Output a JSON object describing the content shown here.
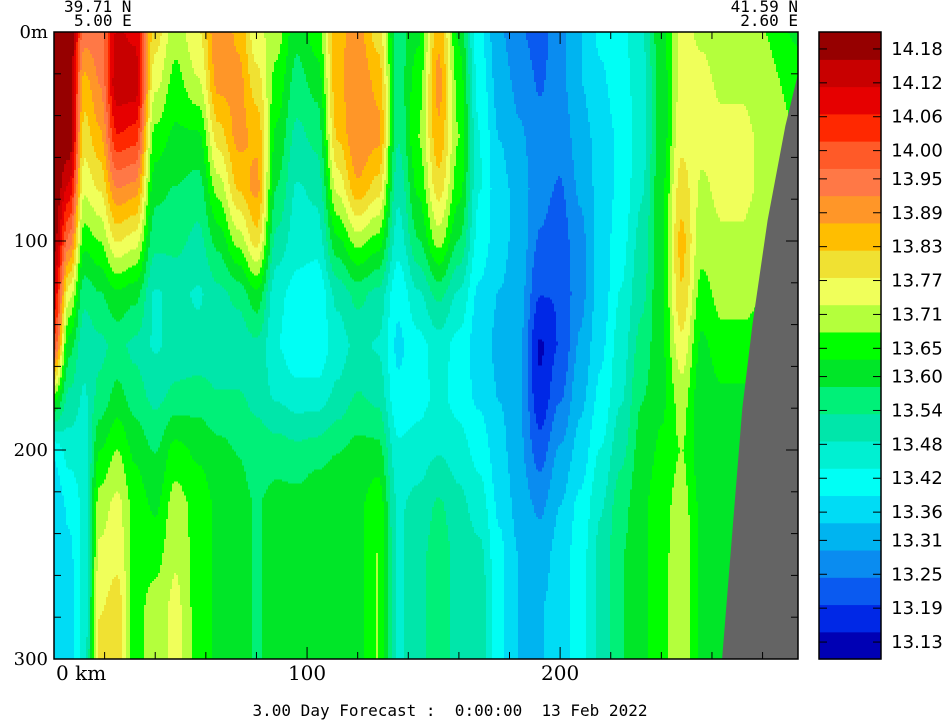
{
  "chart_data": {
    "type": "heatmap",
    "title": "3.00 Day Forecast :  0:00:00  13 Feb 2022",
    "corner_left": {
      "lat": "39.71 N",
      "lon": "5.00 E"
    },
    "corner_right": {
      "lat": "41.59 N",
      "lon": "2.60 E"
    },
    "xlabel": "km",
    "ylabel": "m",
    "xlim": [
      0,
      294
    ],
    "ylim": [
      300,
      0
    ],
    "x_ticks": [
      {
        "value": 0,
        "label": "0 km"
      },
      {
        "value": 100,
        "label": "100"
      },
      {
        "value": 200,
        "label": "200"
      }
    ],
    "y_ticks": [
      {
        "value": 0,
        "label": "0m"
      },
      {
        "value": 100,
        "label": "100"
      },
      {
        "value": 200,
        "label": "200"
      },
      {
        "value": 300,
        "label": "300"
      }
    ],
    "colorbar": {
      "levels": [
        13.1,
        13.13,
        13.16,
        13.19,
        13.22,
        13.25,
        13.28,
        13.31,
        13.34,
        13.36,
        13.39,
        13.42,
        13.45,
        13.48,
        13.51,
        13.54,
        13.57,
        13.6,
        13.62,
        13.65,
        13.68,
        13.71,
        13.74,
        13.77,
        13.8,
        13.83,
        13.86,
        13.89,
        13.92,
        13.95,
        13.98,
        14.0,
        14.03,
        14.06,
        14.09,
        14.12,
        14.15,
        14.18,
        14.21
      ],
      "labels": [
        "14.18",
        "14.12",
        "14.06",
        "14.00",
        "13.95",
        "13.89",
        "13.83",
        "13.77",
        "13.71",
        "13.65",
        "13.60",
        "13.54",
        "13.48",
        "13.42",
        "13.36",
        "13.31",
        "13.25",
        "13.19",
        "13.13"
      ],
      "colors": [
        "#0000b4",
        "#0028e6",
        "#0a5af0",
        "#0a8cf0",
        "#00b4f0",
        "#00dcf5",
        "#00fff5",
        "#00f0d2",
        "#00e6aa",
        "#00f078",
        "#00e628",
        "#00ff00",
        "#b4ff3c",
        "#f0ff5a",
        "#f0e132",
        "#ffbe00",
        "#ff9628",
        "#ff7846",
        "#ff5a28",
        "#ff2800",
        "#e60000",
        "#c80000",
        "#960000"
      ]
    },
    "land_color": "#646464",
    "field": {
      "depths_m": [
        0,
        25,
        50,
        75,
        100,
        125,
        150,
        175,
        200,
        225,
        250,
        275,
        300
      ],
      "columns": [
        {
          "x_km": 0,
          "t": [
            14.21,
            14.21,
            14.21,
            14.21,
            14.18,
            14.1,
            14.0,
            13.65,
            13.4,
            13.35,
            13.38,
            13.36,
            13.36
          ]
        },
        {
          "x_km": 6,
          "t": [
            14.21,
            14.21,
            14.21,
            14.1,
            13.95,
            13.75,
            13.6,
            13.52,
            13.46,
            13.4,
            13.38,
            13.36,
            13.36
          ]
        },
        {
          "x_km": 12,
          "t": [
            13.95,
            13.85,
            13.8,
            13.74,
            13.65,
            13.55,
            13.5,
            13.48,
            13.46,
            13.45,
            13.45,
            13.46,
            13.46
          ]
        },
        {
          "x_km": 18,
          "t": [
            13.95,
            13.92,
            13.86,
            13.78,
            13.68,
            13.58,
            13.52,
            13.55,
            13.63,
            13.7,
            13.74,
            13.77,
            13.8
          ]
        },
        {
          "x_km": 25,
          "t": [
            14.12,
            14.15,
            14.06,
            13.92,
            13.78,
            13.62,
            13.55,
            13.6,
            13.68,
            13.74,
            13.76,
            13.8,
            13.8
          ]
        },
        {
          "x_km": 32,
          "t": [
            14.1,
            14.15,
            14.04,
            13.9,
            13.75,
            13.6,
            13.52,
            13.56,
            13.62,
            13.66,
            13.66,
            13.66,
            13.66
          ]
        },
        {
          "x_km": 40,
          "t": [
            13.8,
            13.74,
            13.66,
            13.6,
            13.55,
            13.48,
            13.48,
            13.52,
            13.58,
            13.62,
            13.66,
            13.7,
            13.7
          ]
        },
        {
          "x_km": 48,
          "t": [
            13.7,
            13.66,
            13.62,
            13.58,
            13.55,
            13.5,
            13.5,
            13.55,
            13.65,
            13.7,
            13.72,
            13.74,
            13.74
          ]
        },
        {
          "x_km": 57,
          "t": [
            13.77,
            13.72,
            13.62,
            13.56,
            13.52,
            13.48,
            13.5,
            13.56,
            13.62,
            13.66,
            13.66,
            13.66,
            13.66
          ]
        },
        {
          "x_km": 65,
          "t": [
            13.92,
            13.89,
            13.8,
            13.7,
            13.6,
            13.52,
            13.5,
            13.54,
            13.6,
            13.62,
            13.62,
            13.62,
            13.62
          ]
        },
        {
          "x_km": 73,
          "t": [
            13.86,
            13.89,
            13.89,
            13.83,
            13.7,
            13.55,
            13.5,
            13.54,
            13.58,
            13.6,
            13.6,
            13.6,
            13.6
          ]
        },
        {
          "x_km": 80,
          "t": [
            13.74,
            13.8,
            13.86,
            13.89,
            13.8,
            13.62,
            13.52,
            13.52,
            13.56,
            13.58,
            13.58,
            13.58,
            13.58
          ]
        },
        {
          "x_km": 88,
          "t": [
            13.7,
            13.66,
            13.62,
            13.58,
            13.52,
            13.45,
            13.44,
            13.48,
            13.56,
            13.6,
            13.6,
            13.6,
            13.6
          ]
        },
        {
          "x_km": 96,
          "t": [
            13.6,
            13.56,
            13.52,
            13.48,
            13.46,
            13.42,
            13.4,
            13.46,
            13.55,
            13.6,
            13.6,
            13.6,
            13.6
          ]
        },
        {
          "x_km": 104,
          "t": [
            13.66,
            13.6,
            13.55,
            13.5,
            13.46,
            13.4,
            13.4,
            13.46,
            13.56,
            13.62,
            13.62,
            13.62,
            13.62
          ]
        },
        {
          "x_km": 112,
          "t": [
            13.86,
            13.86,
            13.83,
            13.74,
            13.62,
            13.5,
            13.46,
            13.5,
            13.58,
            13.62,
            13.62,
            13.62,
            13.62
          ]
        },
        {
          "x_km": 120,
          "t": [
            13.89,
            13.92,
            13.92,
            13.86,
            13.7,
            13.55,
            13.5,
            13.54,
            13.6,
            13.62,
            13.62,
            13.62,
            13.62
          ]
        },
        {
          "x_km": 128,
          "t": [
            13.8,
            13.86,
            13.89,
            13.8,
            13.66,
            13.52,
            13.48,
            13.52,
            13.6,
            13.66,
            13.68,
            13.68,
            13.68
          ]
        },
        {
          "x_km": 136,
          "t": [
            13.56,
            13.56,
            13.54,
            13.5,
            13.46,
            13.4,
            13.38,
            13.4,
            13.45,
            13.48,
            13.48,
            13.48,
            13.48
          ]
        },
        {
          "x_km": 144,
          "t": [
            13.62,
            13.66,
            13.68,
            13.64,
            13.58,
            13.48,
            13.42,
            13.42,
            13.46,
            13.5,
            13.52,
            13.52,
            13.52
          ]
        },
        {
          "x_km": 152,
          "t": [
            13.86,
            13.89,
            13.86,
            13.8,
            13.7,
            13.55,
            13.46,
            13.45,
            13.48,
            13.54,
            13.56,
            13.56,
            13.56
          ]
        },
        {
          "x_km": 160,
          "t": [
            13.62,
            13.66,
            13.68,
            13.65,
            13.58,
            13.48,
            13.42,
            13.42,
            13.46,
            13.5,
            13.52,
            13.52,
            13.52
          ]
        },
        {
          "x_km": 168,
          "t": [
            13.4,
            13.42,
            13.44,
            13.44,
            13.42,
            13.38,
            13.36,
            13.38,
            13.42,
            13.46,
            13.5,
            13.52,
            13.52
          ]
        },
        {
          "x_km": 176,
          "t": [
            13.3,
            13.32,
            13.34,
            13.36,
            13.36,
            13.34,
            13.33,
            13.34,
            13.36,
            13.38,
            13.4,
            13.4,
            13.4
          ]
        },
        {
          "x_km": 184,
          "t": [
            13.25,
            13.28,
            13.3,
            13.32,
            13.32,
            13.31,
            13.3,
            13.3,
            13.3,
            13.32,
            13.34,
            13.34,
            13.34
          ]
        },
        {
          "x_km": 192,
          "t": [
            13.22,
            13.24,
            13.26,
            13.26,
            13.24,
            13.2,
            13.14,
            13.16,
            13.22,
            13.28,
            13.32,
            13.34,
            13.34
          ]
        },
        {
          "x_km": 200,
          "t": [
            13.28,
            13.28,
            13.26,
            13.24,
            13.22,
            13.2,
            13.2,
            13.24,
            13.3,
            13.34,
            13.36,
            13.36,
            13.36
          ]
        },
        {
          "x_km": 208,
          "t": [
            13.34,
            13.34,
            13.32,
            13.3,
            13.28,
            13.28,
            13.3,
            13.33,
            13.36,
            13.4,
            13.42,
            13.42,
            13.42
          ]
        },
        {
          "x_km": 216,
          "t": [
            13.4,
            13.38,
            13.36,
            13.36,
            13.36,
            13.36,
            13.38,
            13.4,
            13.44,
            13.48,
            13.5,
            13.5,
            13.5
          ]
        },
        {
          "x_km": 224,
          "t": [
            13.42,
            13.42,
            13.4,
            13.4,
            13.42,
            13.44,
            13.46,
            13.48,
            13.52,
            13.56,
            13.58,
            13.58,
            13.58
          ]
        },
        {
          "x_km": 232,
          "t": [
            13.48,
            13.46,
            13.46,
            13.48,
            13.5,
            13.52,
            13.55,
            13.58,
            13.6,
            13.62,
            13.62,
            13.62,
            13.62
          ]
        },
        {
          "x_km": 240,
          "t": [
            13.62,
            13.6,
            13.6,
            13.62,
            13.62,
            13.62,
            13.62,
            13.62,
            13.64,
            13.66,
            13.66,
            13.66,
            13.66
          ]
        },
        {
          "x_km": 248,
          "t": [
            13.74,
            13.74,
            13.76,
            13.8,
            13.84,
            13.82,
            13.76,
            13.7,
            13.68,
            13.7,
            13.72,
            13.72,
            13.72
          ]
        },
        {
          "x_km": 256,
          "t": [
            13.72,
            13.74,
            13.74,
            13.72,
            13.7,
            13.66,
            13.62,
            13.6,
            13.6,
            13.62,
            13.62,
            13.62,
            13.62
          ]
        },
        {
          "x_km": 264,
          "t": [
            13.7,
            13.72,
            13.74,
            13.74,
            13.72,
            13.7,
            13.66,
            13.62,
            13.6,
            13.6,
            13.6,
            13.6,
            13.6
          ]
        },
        {
          "x_km": 272,
          "t": [
            13.7,
            13.72,
            13.74,
            13.74,
            13.72,
            13.7,
            13.66,
            13.62,
            13.6,
            13.6,
            13.6,
            13.6,
            13.6
          ]
        },
        {
          "x_km": 280,
          "t": [
            13.68,
            13.7,
            13.72,
            13.72,
            13.7,
            13.68,
            13.66,
            13.62,
            13.6,
            13.6,
            13.6,
            13.6,
            13.6
          ]
        },
        {
          "x_km": 294,
          "t": [
            13.62,
            13.66,
            13.68,
            13.7,
            13.68,
            13.66,
            13.64,
            13.62,
            13.6,
            13.6,
            13.6,
            13.6,
            13.6
          ]
        }
      ],
      "bathymetry": [
        {
          "x_km": 264,
          "depth_m": 300
        },
        {
          "x_km": 268,
          "depth_m": 240
        },
        {
          "x_km": 272,
          "depth_m": 180
        },
        {
          "x_km": 276,
          "depth_m": 140
        },
        {
          "x_km": 282,
          "depth_m": 90
        },
        {
          "x_km": 289,
          "depth_m": 45
        },
        {
          "x_km": 294,
          "depth_m": 20
        }
      ]
    }
  }
}
